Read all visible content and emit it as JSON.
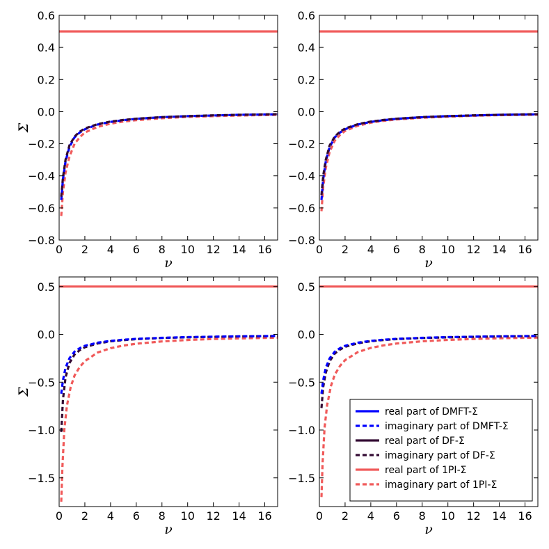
{
  "colors": {
    "dmft": "#0000ff",
    "df": "#330a33",
    "pi": "#f05a5a"
  },
  "legend": {
    "placement": "lower right of bottom-right panel",
    "entries": [
      {
        "label": "real part of DMFT-Σ",
        "color": "#0000ff",
        "style": "solid"
      },
      {
        "label": "imaginary part of DMFT-Σ",
        "color": "#0000ff",
        "style": "dashed"
      },
      {
        "label": "real part of DF-Σ",
        "color": "#330a33",
        "style": "solid"
      },
      {
        "label": "imaginary part of DF-Σ",
        "color": "#330a33",
        "style": "dashed"
      },
      {
        "label": "real part of 1PI-Σ",
        "color": "#f05a5a",
        "style": "solid"
      },
      {
        "label": "imaginary part of 1PI-Σ",
        "color": "#f05a5a",
        "style": "dashed"
      }
    ]
  },
  "chart_data": [
    {
      "type": "line",
      "xlabel": "ν",
      "ylabel": "Σ",
      "xlim": [
        0,
        17
      ],
      "ylim": [
        -0.8,
        0.6
      ],
      "xticks": [
        "0",
        "2",
        "4",
        "6",
        "8",
        "10",
        "12",
        "14",
        "16"
      ],
      "yticks": [
        "−0.8",
        "−0.6",
        "−0.4",
        "−0.2",
        "0.0",
        "0.2",
        "0.4",
        "0.6"
      ],
      "ytick_values": [
        -0.8,
        -0.6,
        -0.4,
        -0.2,
        0.0,
        0.2,
        0.4,
        0.6
      ],
      "series": [
        {
          "name": "real part of 1PI-Σ",
          "color": "#f05a5a",
          "style": "solid",
          "x": [
            0,
            17
          ],
          "y": [
            0.5,
            0.5
          ]
        },
        {
          "name": "imaginary part of 1PI-Σ",
          "color": "#f05a5a",
          "style": "dashed",
          "x": [
            0.16,
            0.3,
            0.5,
            0.8,
            1.2,
            1.6,
            2,
            3,
            4,
            5,
            6,
            8,
            10,
            12,
            14,
            17
          ],
          "y": [
            -0.65,
            -0.5,
            -0.38,
            -0.28,
            -0.2,
            -0.16,
            -0.13,
            -0.095,
            -0.075,
            -0.062,
            -0.053,
            -0.041,
            -0.033,
            -0.028,
            -0.024,
            -0.02
          ]
        },
        {
          "name": "imaginary part of DMFT-Σ",
          "color": "#0000ff",
          "style": "dashed",
          "x": [
            0.16,
            0.3,
            0.5,
            0.8,
            1.2,
            1.6,
            2,
            3,
            4,
            5,
            6,
            8,
            10,
            12,
            14,
            17
          ],
          "y": [
            -0.55,
            -0.42,
            -0.31,
            -0.22,
            -0.16,
            -0.13,
            -0.11,
            -0.08,
            -0.064,
            -0.053,
            -0.045,
            -0.035,
            -0.028,
            -0.024,
            -0.02,
            -0.017
          ]
        },
        {
          "name": "imaginary part of DF-Σ",
          "color": "#330a33",
          "style": "dashed",
          "x": [
            0.16,
            0.3,
            0.5,
            0.8,
            1.2,
            1.6,
            2,
            3,
            4,
            5,
            6,
            8,
            10,
            12,
            14,
            17
          ],
          "y": [
            -0.53,
            -0.41,
            -0.3,
            -0.21,
            -0.155,
            -0.125,
            -0.105,
            -0.078,
            -0.062,
            -0.052,
            -0.044,
            -0.034,
            -0.028,
            -0.023,
            -0.02,
            -0.016
          ]
        }
      ]
    },
    {
      "type": "line",
      "xlabel": "ν",
      "ylabel": "",
      "xlim": [
        0,
        17
      ],
      "ylim": [
        -0.8,
        0.6
      ],
      "xticks": [
        "0",
        "2",
        "4",
        "6",
        "8",
        "10",
        "12",
        "14",
        "16"
      ],
      "yticks": [
        "−0.8",
        "−0.6",
        "−0.4",
        "−0.2",
        "0.0",
        "0.2",
        "0.4",
        "0.6"
      ],
      "ytick_values": [
        -0.8,
        -0.6,
        -0.4,
        -0.2,
        0.0,
        0.2,
        0.4,
        0.6
      ],
      "series": [
        {
          "name": "real part of 1PI-Σ",
          "color": "#f05a5a",
          "style": "solid",
          "x": [
            0,
            17
          ],
          "y": [
            0.5,
            0.5
          ]
        },
        {
          "name": "imaginary part of 1PI-Σ",
          "color": "#f05a5a",
          "style": "dashed",
          "x": [
            0.16,
            0.3,
            0.5,
            0.8,
            1.2,
            1.6,
            2,
            3,
            4,
            5,
            6,
            8,
            10,
            12,
            14,
            17
          ],
          "y": [
            -0.62,
            -0.47,
            -0.35,
            -0.25,
            -0.18,
            -0.145,
            -0.12,
            -0.088,
            -0.069,
            -0.057,
            -0.049,
            -0.038,
            -0.031,
            -0.026,
            -0.022,
            -0.019
          ]
        },
        {
          "name": "imaginary part of DMFT-Σ",
          "color": "#0000ff",
          "style": "dashed",
          "x": [
            0.16,
            0.3,
            0.5,
            0.8,
            1.2,
            1.6,
            2,
            3,
            4,
            5,
            6,
            8,
            10,
            12,
            14,
            17
          ],
          "y": [
            -0.55,
            -0.42,
            -0.31,
            -0.22,
            -0.16,
            -0.13,
            -0.11,
            -0.08,
            -0.064,
            -0.053,
            -0.045,
            -0.035,
            -0.028,
            -0.024,
            -0.02,
            -0.017
          ]
        },
        {
          "name": "imaginary part of DF-Σ",
          "color": "#330a33",
          "style": "dashed",
          "x": [
            0.16,
            0.3,
            0.5,
            0.8,
            1.2,
            1.6,
            2,
            3,
            4,
            5,
            6,
            8,
            10,
            12,
            14,
            17
          ],
          "y": [
            -0.52,
            -0.4,
            -0.3,
            -0.21,
            -0.155,
            -0.125,
            -0.105,
            -0.078,
            -0.062,
            -0.052,
            -0.044,
            -0.034,
            -0.028,
            -0.023,
            -0.02,
            -0.016
          ]
        }
      ]
    },
    {
      "type": "line",
      "xlabel": "ν",
      "ylabel": "Σ",
      "xlim": [
        0,
        17
      ],
      "ylim": [
        -1.8,
        0.6
      ],
      "xticks": [
        "0",
        "2",
        "4",
        "6",
        "8",
        "10",
        "12",
        "14",
        "16"
      ],
      "yticks": [
        "−1.5",
        "−1.0",
        "−0.5",
        "0.0",
        "0.5"
      ],
      "ytick_values": [
        -1.5,
        -1.0,
        -0.5,
        0.0,
        0.5
      ],
      "series": [
        {
          "name": "real part of 1PI-Σ",
          "color": "#f05a5a",
          "style": "solid",
          "x": [
            0,
            17
          ],
          "y": [
            0.5,
            0.5
          ]
        },
        {
          "name": "imaginary part of 1PI-Σ",
          "color": "#f05a5a",
          "style": "dashed",
          "x": [
            0.16,
            0.25,
            0.4,
            0.6,
            0.9,
            1.2,
            1.6,
            2,
            3,
            4,
            5,
            6,
            8,
            10,
            12,
            14,
            17
          ],
          "y": [
            -1.75,
            -1.4,
            -1.0,
            -0.75,
            -0.55,
            -0.43,
            -0.34,
            -0.28,
            -0.19,
            -0.145,
            -0.117,
            -0.098,
            -0.074,
            -0.059,
            -0.049,
            -0.042,
            -0.035
          ]
        },
        {
          "name": "imaginary part of DF-Σ",
          "color": "#330a33",
          "style": "dashed",
          "x": [
            0.16,
            0.3,
            0.5,
            0.8,
            1.2,
            1.6,
            2,
            3,
            4,
            5,
            6,
            8,
            10,
            12,
            14,
            17
          ],
          "y": [
            -1.02,
            -0.68,
            -0.45,
            -0.3,
            -0.21,
            -0.165,
            -0.135,
            -0.095,
            -0.073,
            -0.06,
            -0.05,
            -0.038,
            -0.031,
            -0.026,
            -0.022,
            -0.018
          ]
        },
        {
          "name": "imaginary part of DMFT-Σ",
          "color": "#0000ff",
          "style": "dashed",
          "x": [
            0.16,
            0.3,
            0.5,
            0.8,
            1.2,
            1.6,
            2,
            3,
            4,
            5,
            6,
            8,
            10,
            12,
            14,
            17
          ],
          "y": [
            -0.62,
            -0.48,
            -0.35,
            -0.25,
            -0.18,
            -0.145,
            -0.12,
            -0.087,
            -0.068,
            -0.056,
            -0.047,
            -0.036,
            -0.029,
            -0.025,
            -0.021,
            -0.017
          ]
        }
      ]
    },
    {
      "type": "line",
      "xlabel": "ν",
      "ylabel": "",
      "xlim": [
        0,
        17
      ],
      "ylim": [
        -1.8,
        0.6
      ],
      "xticks": [
        "0",
        "2",
        "4",
        "6",
        "8",
        "10",
        "12",
        "14",
        "16"
      ],
      "yticks": [
        "−1.5",
        "−1.0",
        "−0.5",
        "0.0",
        "0.5"
      ],
      "ytick_values": [
        -1.5,
        -1.0,
        -0.5,
        0.0,
        0.5
      ],
      "series": [
        {
          "name": "real part of 1PI-Σ",
          "color": "#f05a5a",
          "style": "solid",
          "x": [
            0,
            17
          ],
          "y": [
            0.5,
            0.5
          ]
        },
        {
          "name": "imaginary part of 1PI-Σ",
          "color": "#f05a5a",
          "style": "dashed",
          "x": [
            0.16,
            0.25,
            0.4,
            0.6,
            0.9,
            1.2,
            1.6,
            2,
            3,
            4,
            5,
            6,
            8,
            10,
            12,
            14,
            17
          ],
          "y": [
            -1.7,
            -1.35,
            -0.98,
            -0.74,
            -0.54,
            -0.42,
            -0.33,
            -0.27,
            -0.185,
            -0.142,
            -0.115,
            -0.096,
            -0.073,
            -0.058,
            -0.048,
            -0.041,
            -0.034
          ]
        },
        {
          "name": "imaginary part of DF-Σ",
          "color": "#330a33",
          "style": "dashed",
          "x": [
            0.16,
            0.3,
            0.5,
            0.8,
            1.2,
            1.6,
            2,
            3,
            4,
            5,
            6,
            8,
            10,
            12,
            14,
            17
          ],
          "y": [
            -0.77,
            -0.55,
            -0.4,
            -0.28,
            -0.2,
            -0.16,
            -0.13,
            -0.093,
            -0.072,
            -0.059,
            -0.05,
            -0.038,
            -0.031,
            -0.026,
            -0.022,
            -0.018
          ]
        },
        {
          "name": "imaginary part of DMFT-Σ",
          "color": "#0000ff",
          "style": "dashed",
          "x": [
            0.16,
            0.3,
            0.5,
            0.8,
            1.2,
            1.6,
            2,
            3,
            4,
            5,
            6,
            8,
            10,
            12,
            14,
            17
          ],
          "y": [
            -0.62,
            -0.48,
            -0.35,
            -0.25,
            -0.18,
            -0.145,
            -0.12,
            -0.087,
            -0.068,
            -0.056,
            -0.047,
            -0.036,
            -0.029,
            -0.025,
            -0.021,
            -0.017
          ]
        }
      ]
    }
  ]
}
